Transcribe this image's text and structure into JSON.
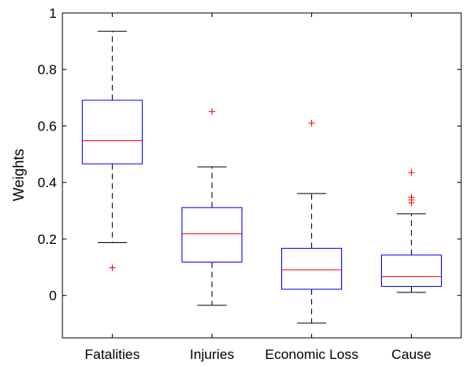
{
  "chart_data": {
    "type": "boxplot",
    "title": "",
    "xlabel": "",
    "ylabel": "Weights",
    "ylim": [
      -0.15,
      1.0
    ],
    "yticks": [
      0,
      0.2,
      0.4,
      0.6,
      0.8,
      1
    ],
    "ytick_labels": [
      "0",
      "0.2",
      "0.4",
      "0.6",
      "0.8",
      "1"
    ],
    "grid": false,
    "categories": [
      "Fatalities",
      "Injuries",
      "Economic Loss",
      "Cause"
    ],
    "boxes": [
      {
        "category": "Fatalities",
        "whisker_low": 0.187,
        "q1": 0.466,
        "median": 0.548,
        "q3": 0.691,
        "whisker_high": 0.935,
        "outliers": [
          0.098
        ]
      },
      {
        "category": "Injuries",
        "whisker_low": -0.035,
        "q1": 0.118,
        "median": 0.218,
        "q3": 0.311,
        "whisker_high": 0.455,
        "outliers": [
          0.651
        ]
      },
      {
        "category": "Economic Loss",
        "whisker_low": -0.098,
        "q1": 0.022,
        "median": 0.091,
        "q3": 0.167,
        "whisker_high": 0.361,
        "outliers": [
          0.61
        ]
      },
      {
        "category": "Cause",
        "whisker_low": 0.011,
        "q1": 0.032,
        "median": 0.067,
        "q3": 0.143,
        "whisker_high": 0.289,
        "outliers": [
          0.435,
          0.348,
          0.338,
          0.328
        ]
      }
    ],
    "colors": {
      "box": "#0000ff",
      "median": "#ff0000",
      "outlier": "#ff0000",
      "whisker": "#000000"
    }
  }
}
